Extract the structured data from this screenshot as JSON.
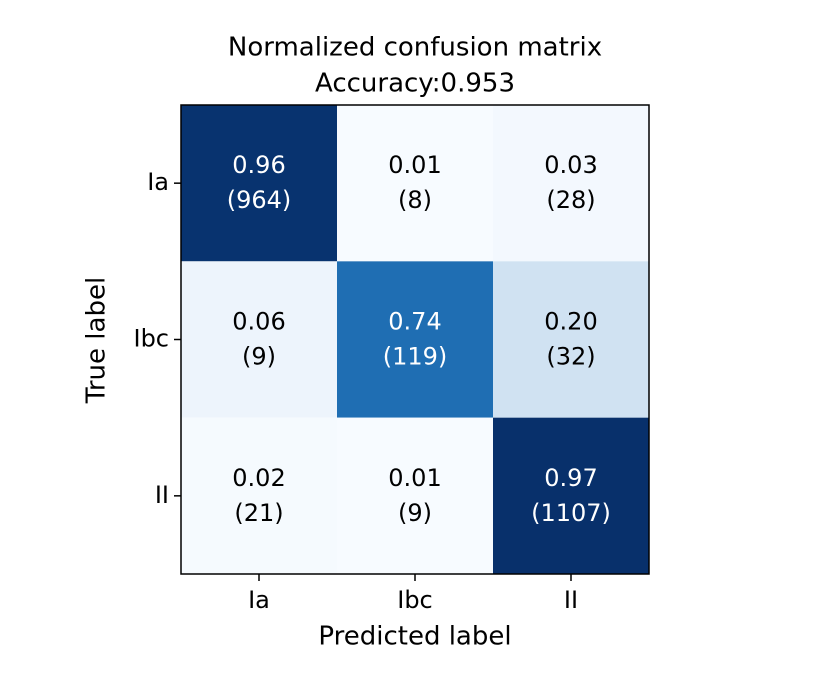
{
  "chart_data": {
    "type": "heatmap",
    "title": "Normalized confusion matrix",
    "subtitle": "Accuracy:0.953",
    "x_label": "Predicted label",
    "y_label": "True label",
    "x_categories": [
      "Ia",
      "Ibc",
      "II"
    ],
    "y_categories": [
      "Ia",
      "Ibc",
      "II"
    ],
    "values": [
      [
        0.96,
        0.01,
        0.03
      ],
      [
        0.06,
        0.74,
        0.2
      ],
      [
        0.02,
        0.01,
        0.97
      ]
    ],
    "value_labels": [
      [
        "0.96",
        "0.01",
        "0.03"
      ],
      [
        "0.06",
        "0.74",
        "0.20"
      ],
      [
        "0.02",
        "0.01",
        "0.97"
      ]
    ],
    "counts": [
      [
        964,
        8,
        28
      ],
      [
        9,
        119,
        32
      ],
      [
        21,
        9,
        1107
      ]
    ],
    "count_labels": [
      [
        "(964)",
        "(8)",
        "(28)"
      ],
      [
        "(9)",
        "(119)",
        "(32)"
      ],
      [
        "(21)",
        "(9)",
        "(1107)"
      ]
    ],
    "colorscale": [
      "#f7fbff",
      "#deebf7",
      "#c6dbef",
      "#9ecae1",
      "#6baed6",
      "#4292c6",
      "#2171b5",
      "#08519c",
      "#08306b"
    ]
  }
}
